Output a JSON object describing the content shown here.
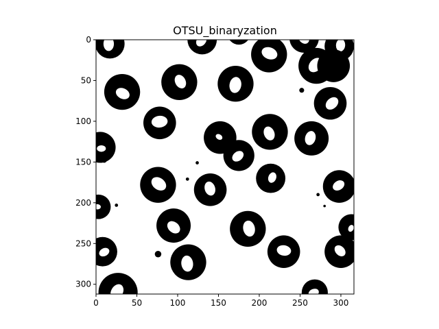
{
  "chart_data": {
    "type": "heatmap",
    "title": "OTSU_binaryzation",
    "xlabel": "",
    "ylabel": "",
    "colormap": "gray",
    "x_ticks": [
      0,
      50,
      100,
      150,
      200,
      250,
      300
    ],
    "y_ticks": [
      0,
      50,
      100,
      150,
      200,
      250,
      300
    ],
    "xlim": [
      0,
      316
    ],
    "ylim": [
      312,
      0
    ],
    "grid": false,
    "colors": {
      "foreground": "#000000",
      "background": "#ffffff"
    },
    "rings": [
      {
        "cx": 17,
        "cy": 5,
        "r": 18,
        "h": 8
      },
      {
        "cx": 130,
        "cy": 0,
        "r": 18,
        "h": 7
      },
      {
        "cx": 175,
        "cy": -8,
        "r": 14,
        "h": 5
      },
      {
        "cx": 212,
        "cy": 18,
        "r": 22,
        "h": 9
      },
      {
        "cx": 255,
        "cy": -2,
        "r": 18,
        "h": 8
      },
      {
        "cx": 298,
        "cy": 8,
        "r": 18,
        "h": 7
      },
      {
        "cx": 270,
        "cy": 32,
        "r": 22,
        "h": 9
      },
      {
        "cx": 291,
        "cy": 32,
        "r": 20,
        "h": 0
      },
      {
        "cx": 32,
        "cy": 64,
        "r": 22,
        "h": 8
      },
      {
        "cx": 102,
        "cy": 52,
        "r": 22,
        "h": 8
      },
      {
        "cx": 171,
        "cy": 54,
        "r": 22,
        "h": 9
      },
      {
        "cx": 287,
        "cy": 78,
        "r": 20,
        "h": 8
      },
      {
        "cx": 78,
        "cy": 102,
        "r": 20,
        "h": 9
      },
      {
        "cx": 152,
        "cy": 120,
        "r": 20,
        "h": 4
      },
      {
        "cx": 213,
        "cy": 113,
        "r": 22,
        "h": 8
      },
      {
        "cx": 264,
        "cy": 121,
        "r": 21,
        "h": 8
      },
      {
        "cx": 175,
        "cy": 142,
        "r": 19,
        "h": 7
      },
      {
        "cx": 5,
        "cy": 132,
        "r": 19,
        "h": 5
      },
      {
        "cx": 76,
        "cy": 178,
        "r": 22,
        "h": 9
      },
      {
        "cx": 140,
        "cy": 184,
        "r": 20,
        "h": 8
      },
      {
        "cx": 214,
        "cy": 170,
        "r": 18,
        "h": 6
      },
      {
        "cx": 298,
        "cy": 180,
        "r": 20,
        "h": 7
      },
      {
        "cx": 3,
        "cy": 205,
        "r": 15,
        "h": 4
      },
      {
        "cx": 95,
        "cy": 228,
        "r": 21,
        "h": 8
      },
      {
        "cx": 186,
        "cy": 232,
        "r": 22,
        "h": 9
      },
      {
        "cx": 313,
        "cy": 230,
        "r": 16,
        "h": 4
      },
      {
        "cx": 8,
        "cy": 260,
        "r": 18,
        "h": 6
      },
      {
        "cx": 230,
        "cy": 260,
        "r": 20,
        "h": 8
      },
      {
        "cx": 300,
        "cy": 260,
        "r": 20,
        "h": 7
      },
      {
        "cx": 113,
        "cy": 273,
        "r": 22,
        "h": 9
      },
      {
        "cx": 27,
        "cy": 310,
        "r": 24,
        "h": 9
      },
      {
        "cx": 268,
        "cy": 310,
        "r": 16,
        "h": 6
      }
    ],
    "specks": [
      {
        "cx": 252,
        "cy": 62,
        "r": 3
      },
      {
        "cx": 124,
        "cy": 151,
        "r": 2
      },
      {
        "cx": 112,
        "cy": 171,
        "r": 2
      },
      {
        "cx": 25,
        "cy": 203,
        "r": 2
      },
      {
        "cx": 76,
        "cy": 263,
        "r": 4
      },
      {
        "cx": 272,
        "cy": 190,
        "r": 2
      },
      {
        "cx": 280,
        "cy": 204,
        "r": 1.5
      },
      {
        "cx": 10,
        "cy": 148,
        "r": 3
      }
    ]
  }
}
